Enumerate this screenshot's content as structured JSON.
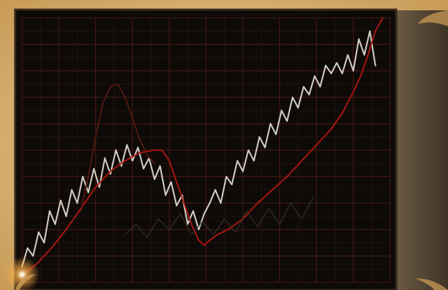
{
  "colors": {
    "parchment": "#e8c98c",
    "parchment_dark": "#c79a56",
    "panel": "#0d0a08",
    "panel_edge": "#3a2a1d",
    "grid_major": "#4a1b10",
    "grid_minor": "#2a130c",
    "line_white": "#d9d6cf",
    "line_red": "#b01713",
    "line_red_dim": "#5a1a14",
    "line_faint": "#3b3532",
    "glow": "#ffb04a",
    "right_strip": "#5a4b38"
  },
  "chart_data": {
    "type": "line",
    "xlim": [
      0,
      100
    ],
    "ylim": [
      0,
      100
    ],
    "grid": true,
    "series": [
      {
        "style": "white",
        "values_xy": [
          [
            0,
            6
          ],
          [
            1.5,
            13
          ],
          [
            3,
            10
          ],
          [
            4.5,
            19
          ],
          [
            6,
            15
          ],
          [
            7.5,
            27
          ],
          [
            9,
            22
          ],
          [
            10.5,
            31
          ],
          [
            12,
            25
          ],
          [
            13.5,
            35
          ],
          [
            15,
            30
          ],
          [
            16.5,
            40
          ],
          [
            18,
            34
          ],
          [
            19.5,
            43
          ],
          [
            21,
            36
          ],
          [
            22.5,
            47
          ],
          [
            24,
            41
          ],
          [
            25.5,
            50
          ],
          [
            27,
            44
          ],
          [
            28.5,
            52
          ],
          [
            30,
            46
          ],
          [
            31.5,
            51
          ],
          [
            33,
            43
          ],
          [
            34.5,
            47
          ],
          [
            36,
            39
          ],
          [
            37.5,
            44
          ],
          [
            39,
            33
          ],
          [
            40.5,
            38
          ],
          [
            42,
            29
          ],
          [
            43.5,
            33
          ],
          [
            45,
            22
          ],
          [
            46.5,
            27
          ],
          [
            48,
            20
          ],
          [
            49.5,
            26
          ],
          [
            51,
            30
          ],
          [
            52.5,
            35
          ],
          [
            54,
            30
          ],
          [
            55.5,
            40
          ],
          [
            57,
            37
          ],
          [
            58.5,
            46
          ],
          [
            60,
            42
          ],
          [
            61.5,
            50
          ],
          [
            63,
            46
          ],
          [
            64.5,
            55
          ],
          [
            66,
            51
          ],
          [
            67.5,
            60
          ],
          [
            69,
            56
          ],
          [
            70.5,
            65
          ],
          [
            72,
            61
          ],
          [
            73.5,
            70
          ],
          [
            75,
            66
          ],
          [
            76.5,
            74
          ],
          [
            78,
            71
          ],
          [
            79.5,
            78
          ],
          [
            81,
            74
          ],
          [
            82.5,
            82
          ],
          [
            84,
            79
          ],
          [
            85.5,
            83
          ],
          [
            87,
            79
          ],
          [
            88.5,
            86
          ],
          [
            90,
            80
          ],
          [
            91.5,
            92
          ],
          [
            93,
            86
          ],
          [
            94.5,
            95
          ],
          [
            96,
            82
          ]
        ]
      },
      {
        "style": "red",
        "values_xy": [
          [
            0,
            3
          ],
          [
            4,
            7
          ],
          [
            8,
            13
          ],
          [
            12,
            20
          ],
          [
            16,
            28
          ],
          [
            20,
            36
          ],
          [
            24,
            42
          ],
          [
            28,
            46
          ],
          [
            32,
            49
          ],
          [
            36,
            50
          ],
          [
            38,
            50
          ],
          [
            40,
            46
          ],
          [
            42,
            38
          ],
          [
            44,
            30
          ],
          [
            46,
            22
          ],
          [
            48,
            16
          ],
          [
            49.5,
            14
          ],
          [
            51,
            16
          ],
          [
            53,
            18
          ],
          [
            56,
            20
          ],
          [
            60,
            24
          ],
          [
            64,
            30
          ],
          [
            68,
            35
          ],
          [
            72,
            40
          ],
          [
            76,
            46
          ],
          [
            80,
            52
          ],
          [
            84,
            58
          ],
          [
            87,
            64
          ],
          [
            90,
            72
          ],
          [
            92,
            78
          ],
          [
            94,
            86
          ],
          [
            96,
            95
          ],
          [
            98,
            100
          ]
        ]
      },
      {
        "style": "red-dim",
        "values_xy": [
          [
            16,
            27
          ],
          [
            18,
            40
          ],
          [
            20,
            55
          ],
          [
            22,
            68
          ],
          [
            24,
            74
          ],
          [
            26,
            75
          ],
          [
            28,
            70
          ],
          [
            30,
            62
          ],
          [
            32,
            54
          ],
          [
            34,
            48
          ],
          [
            36,
            45
          ]
        ]
      },
      {
        "style": "faint",
        "values_xy": [
          [
            28,
            18
          ],
          [
            31,
            22
          ],
          [
            34,
            17
          ],
          [
            37,
            24
          ],
          [
            40,
            20
          ],
          [
            43,
            26
          ],
          [
            46,
            18
          ],
          [
            49,
            23
          ],
          [
            52,
            18
          ],
          [
            55,
            24
          ],
          [
            58,
            19
          ],
          [
            61,
            27
          ],
          [
            64,
            21
          ],
          [
            67,
            28
          ],
          [
            70,
            22
          ],
          [
            73,
            30
          ],
          [
            76,
            24
          ],
          [
            79,
            32
          ]
        ]
      }
    ]
  }
}
